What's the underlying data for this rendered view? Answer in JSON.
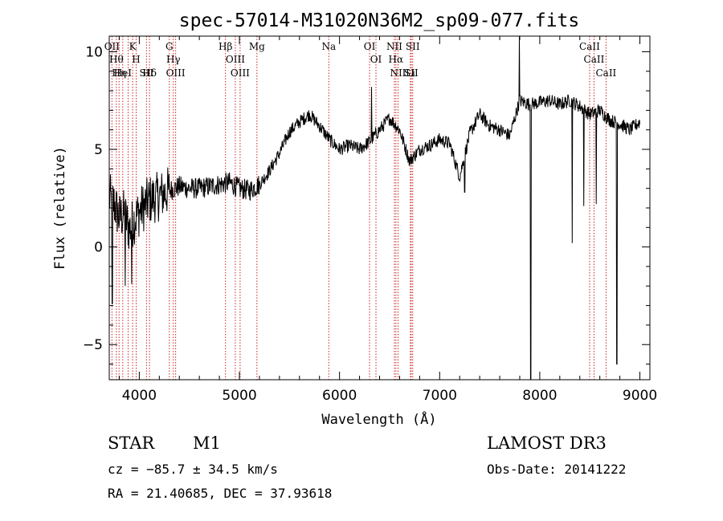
{
  "chart_data": {
    "type": "line",
    "title": "spec-57014-M31020N36M2_sp09-077.fits",
    "xlabel": "Wavelength (Å)",
    "ylabel": "Flux (relative)",
    "xlim": [
      3700,
      9100
    ],
    "ylim": [
      -6.8,
      10.8
    ],
    "xticks": [
      4000,
      5000,
      6000,
      7000,
      8000,
      9000
    ],
    "xtick_labels": [
      "4000",
      "5000",
      "6000",
      "7000",
      "8000",
      "9000"
    ],
    "yticks": [
      -5,
      0,
      5,
      10
    ],
    "ytick_labels": [
      "−5",
      "0",
      "5",
      "10"
    ],
    "colors": {
      "spectrum": "#000000",
      "line_markers": "#cc2222",
      "axes": "#000000"
    },
    "spectrum_anchors": [
      [
        3700,
        2.5
      ],
      [
        3750,
        2.2
      ],
      [
        3800,
        1.5
      ],
      [
        3850,
        1.7
      ],
      [
        3900,
        0.9
      ],
      [
        3950,
        1.4
      ],
      [
        4000,
        1.8
      ],
      [
        4100,
        2.4
      ],
      [
        4200,
        2.6
      ],
      [
        4300,
        2.9
      ],
      [
        4400,
        3.1
      ],
      [
        4500,
        3.0
      ],
      [
        4600,
        3.0
      ],
      [
        4700,
        3.1
      ],
      [
        4800,
        3.2
      ],
      [
        4900,
        3.3
      ],
      [
        5000,
        3.0
      ],
      [
        5100,
        2.9
      ],
      [
        5200,
        3.2
      ],
      [
        5300,
        3.9
      ],
      [
        5400,
        4.8
      ],
      [
        5500,
        5.9
      ],
      [
        5600,
        6.4
      ],
      [
        5700,
        6.8
      ],
      [
        5800,
        6.2
      ],
      [
        5900,
        5.5
      ],
      [
        6000,
        5.0
      ],
      [
        6100,
        5.2
      ],
      [
        6200,
        5.0
      ],
      [
        6300,
        5.4
      ],
      [
        6400,
        6.0
      ],
      [
        6500,
        6.6
      ],
      [
        6600,
        6.0
      ],
      [
        6700,
        4.4
      ],
      [
        6800,
        5.0
      ],
      [
        6900,
        5.2
      ],
      [
        7000,
        5.5
      ],
      [
        7100,
        5.3
      ],
      [
        7200,
        3.6
      ],
      [
        7300,
        5.8
      ],
      [
        7400,
        6.8
      ],
      [
        7500,
        6.2
      ],
      [
        7600,
        6.0
      ],
      [
        7700,
        5.7
      ],
      [
        7800,
        7.5
      ],
      [
        7900,
        7.3
      ],
      [
        8000,
        7.4
      ],
      [
        8100,
        7.5
      ],
      [
        8200,
        7.3
      ],
      [
        8300,
        7.5
      ],
      [
        8400,
        7.2
      ],
      [
        8500,
        6.8
      ],
      [
        8600,
        7.0
      ],
      [
        8700,
        6.5
      ],
      [
        8800,
        6.3
      ],
      [
        8900,
        6.0
      ],
      [
        9000,
        6.4
      ]
    ],
    "spectrum_spikes": [
      [
        7910,
        -6.8
      ],
      [
        7795,
        10.8
      ],
      [
        8770,
        -6.0
      ],
      [
        8325,
        0.2
      ],
      [
        8565,
        2.2
      ],
      [
        8440,
        2.1
      ],
      [
        7250,
        2.8
      ],
      [
        6320,
        8.2
      ],
      [
        3730,
        -2.9
      ],
      [
        3860,
        -2.0
      ],
      [
        3925,
        -1.9
      ]
    ],
    "spectral_lines": [
      {
        "wave": 3727,
        "label": "OII"
      },
      {
        "wave": 3771,
        "label": "Hθ"
      },
      {
        "wave": 3798,
        "label": "Hη"
      },
      {
        "wave": 3835,
        "label": "HeI"
      },
      {
        "wave": 3889,
        "label": ""
      },
      {
        "wave": 3934,
        "label": "K"
      },
      {
        "wave": 3969,
        "label": "H"
      },
      {
        "wave": 4072,
        "label": "SII"
      },
      {
        "wave": 4102,
        "label": "Hδ"
      },
      {
        "wave": 4300,
        "label": "G"
      },
      {
        "wave": 4340,
        "label": "Hγ"
      },
      {
        "wave": 4363,
        "label": "OIII"
      },
      {
        "wave": 4861,
        "label": "Hβ"
      },
      {
        "wave": 4959,
        "label": "OIII"
      },
      {
        "wave": 5007,
        "label": "OIII"
      },
      {
        "wave": 5175,
        "label": "Mg"
      },
      {
        "wave": 5893,
        "label": "Na"
      },
      {
        "wave": 6300,
        "label": "OI"
      },
      {
        "wave": 6364,
        "label": "OI"
      },
      {
        "wave": 6548,
        "label": "NII"
      },
      {
        "wave": 6563,
        "label": "Hα"
      },
      {
        "wave": 6584,
        "label": "NII"
      },
      {
        "wave": 6708,
        "label": "Li"
      },
      {
        "wave": 6716,
        "label": "SII"
      },
      {
        "wave": 6731,
        "label": "SII"
      },
      {
        "wave": 8498,
        "label": "CaII"
      },
      {
        "wave": 8542,
        "label": "CaII"
      },
      {
        "wave": 8662,
        "label": "CaII"
      }
    ]
  },
  "info": {
    "object_class": "STAR",
    "subclass": "M1",
    "survey": "LAMOST DR3",
    "cz": "cz = −85.7 ± 34.5 km/s",
    "obs_date": "Obs-Date: 20141222",
    "coords": "RA =  21.40685, DEC =  37.93618"
  }
}
